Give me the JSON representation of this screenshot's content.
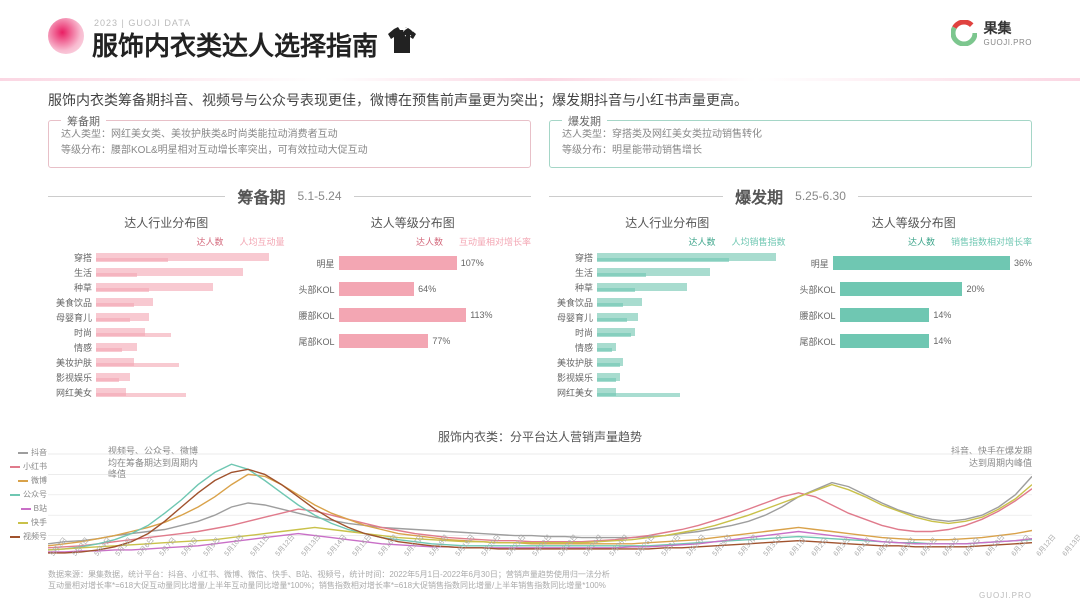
{
  "header": {
    "subtitle": "2023 | GUOJI DATA",
    "title": "服饰内衣类达人选择指南"
  },
  "brand": {
    "cn": "果集",
    "en": "GUOJI.PRO"
  },
  "summary": "服饰内衣类筹备期抖音、视频号与公众号表现更佳，微博在预售前声量更为突出；爆发期抖音与小红书声量更高。",
  "periods": {
    "prep": {
      "label": "筹备期",
      "line1": "达人类型：网红美女类、美妆护肤类&时尚类能拉动消费者互动",
      "line2": "等级分布：腰部KOL&明星相对互动增长率突出，可有效拉动大促互动"
    },
    "burst": {
      "label": "爆发期",
      "line1": "达人类型：穿搭类及网红美女类拉动销售转化",
      "line2": "等级分布：明星能带动销售增长"
    }
  },
  "colors": {
    "pink": "#f3a6b3",
    "pink_light": "#f8c9d1",
    "pink_txt": "#d46a7d",
    "teal": "#6fc7b2",
    "teal_light": "#a8dccf",
    "teal_txt": "#3fa68c",
    "grid": "#e5e5e5"
  },
  "prep": {
    "name": "筹备期",
    "dates": "5.1-5.24",
    "industry": {
      "title": "达人行业分布图",
      "legend": [
        "达人数",
        "人均互动量"
      ],
      "legend_colors": [
        "#d46a7d",
        "#f3a6b3"
      ],
      "rows": [
        {
          "label": "穿搭",
          "a": 92,
          "b": 38
        },
        {
          "label": "生活",
          "a": 78,
          "b": 22
        },
        {
          "label": "种草",
          "a": 62,
          "b": 28
        },
        {
          "label": "美食饮品",
          "a": 30,
          "b": 20
        },
        {
          "label": "母婴育儿",
          "a": 28,
          "b": 18
        },
        {
          "label": "时尚",
          "a": 26,
          "b": 40
        },
        {
          "label": "情感",
          "a": 22,
          "b": 14
        },
        {
          "label": "美妆护肤",
          "a": 20,
          "b": 44
        },
        {
          "label": "影视娱乐",
          "a": 18,
          "b": 12
        },
        {
          "label": "网红美女",
          "a": 16,
          "b": 48
        }
      ]
    },
    "level": {
      "title": "达人等级分布图",
      "legend": [
        "达人数",
        "互动量相对增长率"
      ],
      "legend_colors": [
        "#d46a7d",
        "#f3a6b3"
      ],
      "rows": [
        {
          "label": "明星",
          "v": 50,
          "pct": "107%"
        },
        {
          "label": "头部KOL",
          "v": 32,
          "pct": "64%"
        },
        {
          "label": "腰部KOL",
          "v": 54,
          "pct": "113%"
        },
        {
          "label": "尾部KOL",
          "v": 38,
          "pct": "77%"
        }
      ]
    }
  },
  "burst": {
    "name": "爆发期",
    "dates": "5.25-6.30",
    "industry": {
      "title": "达人行业分布图",
      "legend": [
        "达人数",
        "人均销售指数"
      ],
      "legend_colors": [
        "#3fa68c",
        "#6fc7b2"
      ],
      "rows": [
        {
          "label": "穿搭",
          "a": 95,
          "b": 70
        },
        {
          "label": "生活",
          "a": 60,
          "b": 26
        },
        {
          "label": "种草",
          "a": 48,
          "b": 20
        },
        {
          "label": "美食饮品",
          "a": 24,
          "b": 14
        },
        {
          "label": "母婴育儿",
          "a": 22,
          "b": 16
        },
        {
          "label": "时尚",
          "a": 20,
          "b": 18
        },
        {
          "label": "情感",
          "a": 10,
          "b": 8
        },
        {
          "label": "美妆护肤",
          "a": 14,
          "b": 12
        },
        {
          "label": "影视娱乐",
          "a": 12,
          "b": 10
        },
        {
          "label": "网红美女",
          "a": 10,
          "b": 44
        }
      ]
    },
    "level": {
      "title": "达人等级分布图",
      "legend": [
        "达人数",
        "销售指数相对增长率"
      ],
      "legend_colors": [
        "#3fa68c",
        "#6fc7b2"
      ],
      "rows": [
        {
          "label": "明星",
          "v": 90,
          "pct": "36%"
        },
        {
          "label": "头部KOL",
          "v": 52,
          "pct": "20%"
        },
        {
          "label": "腰部KOL",
          "v": 38,
          "pct": "14%"
        },
        {
          "label": "尾部KOL",
          "v": 38,
          "pct": "14%"
        }
      ]
    }
  },
  "line": {
    "title": "服饰内衣类：分平台达人营销声量趋势",
    "annot_left": "视频号、公众号、微博\n均在筹备期达到周期内\n峰值",
    "annot_right": "抖音、快手在爆发期\n达到周期内峰值",
    "platforms": [
      {
        "name": "抖音",
        "color": "#9e9e9e"
      },
      {
        "name": "小红书",
        "color": "#e07b8c"
      },
      {
        "name": "微博",
        "color": "#d9a24a"
      },
      {
        "name": "公众号",
        "color": "#6fc7b2"
      },
      {
        "name": "B站",
        "color": "#c96fc7"
      },
      {
        "name": "快手",
        "color": "#c9c14a"
      },
      {
        "name": "视频号",
        "color": "#a0522d"
      }
    ],
    "dates": [
      "5月2日",
      "5月3日",
      "5月4日",
      "5月5日",
      "5月6日",
      "5月7日",
      "5月8日",
      "5月9日",
      "5月10日",
      "5月11日",
      "5月12日",
      "5月13日",
      "5月14日",
      "5月15日",
      "5月16日",
      "5月17日",
      "5月18日",
      "5月19日",
      "5月20日",
      "5月21日",
      "5月22日",
      "5月23日",
      "5月24日",
      "5月25日",
      "5月26日",
      "5月27日",
      "5月28日",
      "5月29日",
      "5月30日",
      "5月31日",
      "6月1日",
      "6月2日",
      "6月3日",
      "6月4日",
      "6月5日",
      "6月6日",
      "6月7日",
      "6月8日",
      "6月9日",
      "6月10日",
      "6月11日",
      "6月12日",
      "6月13日",
      "6月14日",
      "6月15日",
      "6月16日",
      "6月17日",
      "6月18日",
      "6月19日",
      "6月20日",
      "6月21日",
      "6月22日",
      "6月23日",
      "6月24日",
      "6月25日",
      "6月26日",
      "6月27日",
      "6月28日",
      "6月29日",
      "6月30日"
    ],
    "series": [
      [
        12,
        14,
        15,
        17,
        20,
        22,
        24,
        26,
        30,
        34,
        40,
        48,
        52,
        50,
        46,
        42,
        38,
        35,
        32,
        30,
        28,
        27,
        26,
        25,
        24,
        23,
        22,
        21,
        20,
        20,
        19,
        19,
        18,
        18,
        18,
        18,
        19,
        20,
        22,
        24,
        27,
        30,
        34,
        40,
        48,
        58,
        65,
        72,
        68,
        60,
        52,
        45,
        40,
        36,
        34,
        36,
        40,
        48,
        60,
        78
      ],
      [
        8,
        9,
        10,
        12,
        14,
        16,
        18,
        20,
        22,
        24,
        27,
        30,
        34,
        38,
        42,
        46,
        44,
        40,
        36,
        32,
        28,
        25,
        22,
        20,
        18,
        17,
        16,
        15,
        15,
        14,
        14,
        14,
        14,
        15,
        16,
        18,
        20,
        23,
        26,
        30,
        35,
        40,
        46,
        52,
        58,
        62,
        58,
        50,
        42,
        36,
        30,
        26,
        24,
        24,
        26,
        30,
        36,
        44,
        54,
        66
      ],
      [
        10,
        12,
        14,
        17,
        20,
        24,
        28,
        33,
        40,
        48,
        58,
        70,
        80,
        78,
        70,
        60,
        50,
        42,
        36,
        30,
        26,
        22,
        20,
        18,
        16,
        15,
        14,
        13,
        13,
        12,
        12,
        12,
        12,
        12,
        12,
        12,
        13,
        14,
        15,
        16,
        18,
        20,
        22,
        24,
        26,
        28,
        26,
        24,
        22,
        20,
        18,
        17,
        16,
        16,
        16,
        17,
        18,
        20,
        22,
        25
      ],
      [
        6,
        7,
        9,
        12,
        16,
        22,
        30,
        42,
        55,
        70,
        82,
        90,
        85,
        74,
        62,
        50,
        40,
        32,
        26,
        22,
        18,
        16,
        14,
        12,
        11,
        10,
        10,
        10,
        10,
        10,
        10,
        10,
        10,
        10,
        10,
        10,
        10,
        11,
        12,
        13,
        14,
        15,
        16,
        17,
        18,
        19,
        18,
        17,
        16,
        15,
        14,
        13,
        13,
        12,
        12,
        12,
        13,
        14,
        15,
        16
      ],
      [
        4,
        4,
        5,
        5,
        6,
        6,
        7,
        8,
        9,
        10,
        12,
        14,
        16,
        18,
        20,
        22,
        20,
        18,
        16,
        14,
        12,
        11,
        10,
        9,
        9,
        8,
        8,
        8,
        8,
        8,
        8,
        8,
        8,
        8,
        8,
        9,
        9,
        10,
        11,
        12,
        14,
        16,
        18,
        20,
        22,
        24,
        22,
        20,
        18,
        16,
        14,
        13,
        12,
        12,
        12,
        12,
        13,
        14,
        15,
        17
      ],
      [
        6,
        7,
        8,
        9,
        10,
        11,
        12,
        13,
        14,
        15,
        16,
        18,
        20,
        22,
        24,
        26,
        28,
        26,
        24,
        22,
        20,
        18,
        17,
        16,
        15,
        14,
        14,
        13,
        13,
        13,
        13,
        13,
        13,
        14,
        15,
        16,
        18,
        20,
        23,
        26,
        30,
        35,
        40,
        46,
        52,
        58,
        64,
        70,
        65,
        58,
        50,
        44,
        38,
        34,
        32,
        34,
        38,
        46,
        56,
        70
      ],
      [
        3,
        3,
        4,
        6,
        9,
        14,
        22,
        34,
        48,
        62,
        74,
        82,
        85,
        80,
        70,
        58,
        46,
        36,
        28,
        22,
        18,
        14,
        12,
        10,
        9,
        8,
        8,
        7,
        7,
        7,
        7,
        7,
        7,
        7,
        7,
        7,
        7,
        8,
        8,
        9,
        10,
        11,
        12,
        13,
        14,
        15,
        14,
        13,
        12,
        11,
        10,
        10,
        9,
        9,
        9,
        9,
        10,
        11,
        12,
        13
      ]
    ]
  },
  "footer": {
    "l1": "数据来源：果集数据，统计平台：抖音、小红书、微博、微信、快手、B站、视频号，统计时间：2022年5月1日-2022年6月30日；营销声量趋势使用归一法分析",
    "l2": "互动量相对增长率*=618大促互动量同比增量/上半年互动量同比增量*100%；销售指数相对增长率*=618大促销售指数同比增量/上半年销售指数同比增量*100%",
    "right": "GUOJI.PRO"
  }
}
